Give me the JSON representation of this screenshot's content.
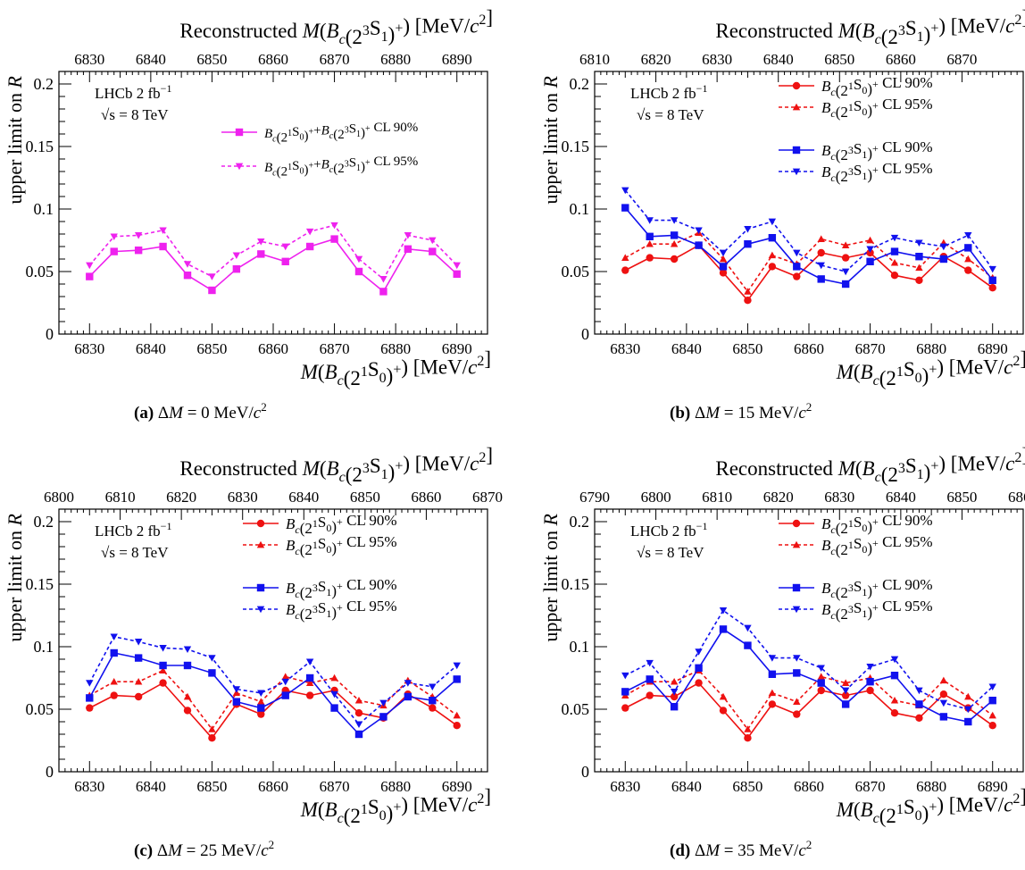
{
  "figure": {
    "top_axis_label": "Reconstructed M(B_c(2^3S_1)^+) [MeV/c^2]",
    "bottom_axis_label": "M(B_c(2^1S_0)^+) [MeV/c^2]",
    "y_axis_label": "upper limit on R",
    "experiment_label": "LHCb  2 fb⁻¹",
    "energy_label": "√s = 8 TeV"
  },
  "chart_data": [
    {
      "panel": "a",
      "caption": "(a)  ΔM = 0 MeV/c²",
      "type": "line",
      "x": [
        6830,
        6834,
        6838,
        6842,
        6846,
        6850,
        6854,
        6858,
        6862,
        6866,
        6870,
        6874,
        6878,
        6882,
        6886,
        6890
      ],
      "xlim": [
        6825,
        6895
      ],
      "ylim": [
        0,
        0.21
      ],
      "yticks": [
        0,
        0.05,
        0.1,
        0.15,
        0.2
      ],
      "xticks": [
        6830,
        6840,
        6850,
        6860,
        6870,
        6880,
        6890
      ],
      "top_xticks": [
        6830,
        6840,
        6850,
        6860,
        6870,
        6880,
        6890
      ],
      "top_offset": 0,
      "series": [
        {
          "name": "B_c(2^1S_0)^+ + B_c(2^3S_1)^+ CL 90%",
          "color": "#ee22ee",
          "dash": false,
          "marker": "square",
          "values": [
            0.046,
            0.066,
            0.067,
            0.07,
            0.047,
            0.035,
            0.052,
            0.064,
            0.058,
            0.07,
            0.076,
            0.05,
            0.034,
            0.068,
            0.066,
            0.048
          ]
        },
        {
          "name": "B_c(2^1S_0)^+ + B_c(2^3S_1)^+ CL 95%",
          "color": "#ee22ee",
          "dash": true,
          "marker": "triangle-down",
          "values": [
            0.055,
            0.078,
            0.079,
            0.083,
            0.056,
            0.046,
            0.063,
            0.074,
            0.07,
            0.082,
            0.087,
            0.06,
            0.044,
            0.079,
            0.075,
            0.055
          ]
        }
      ]
    },
    {
      "panel": "b",
      "caption": "(b)  ΔM = 15 MeV/c²",
      "type": "line",
      "x": [
        6830,
        6834,
        6838,
        6842,
        6846,
        6850,
        6854,
        6858,
        6862,
        6866,
        6870,
        6874,
        6878,
        6882,
        6886,
        6890
      ],
      "xlim": [
        6825,
        6895
      ],
      "ylim": [
        0,
        0.21
      ],
      "yticks": [
        0,
        0.05,
        0.1,
        0.15,
        0.2
      ],
      "xticks": [
        6830,
        6840,
        6850,
        6860,
        6870,
        6880,
        6890
      ],
      "top_xticks": [
        6810,
        6820,
        6830,
        6840,
        6850,
        6860,
        6870
      ],
      "top_offset": -15,
      "series": [
        {
          "name": "B_c(2^1S_0)^+ CL 90%",
          "color": "#ee1111",
          "dash": false,
          "marker": "circle",
          "values": [
            0.051,
            0.061,
            0.06,
            0.071,
            0.049,
            0.027,
            0.054,
            0.046,
            0.065,
            0.061,
            0.065,
            0.047,
            0.043,
            0.062,
            0.051,
            0.037
          ]
        },
        {
          "name": "B_c(2^1S_0)^+ CL 95%",
          "color": "#ee1111",
          "dash": true,
          "marker": "triangle-up",
          "values": [
            0.061,
            0.072,
            0.072,
            0.081,
            0.06,
            0.034,
            0.063,
            0.056,
            0.076,
            0.071,
            0.075,
            0.057,
            0.053,
            0.073,
            0.06,
            0.045
          ]
        },
        {
          "name": "B_c(2^3S_1)^+ CL 90%",
          "color": "#1111ee",
          "dash": false,
          "marker": "square",
          "values": [
            0.101,
            0.078,
            0.079,
            0.071,
            0.054,
            0.072,
            0.077,
            0.054,
            0.044,
            0.04,
            0.058,
            0.066,
            0.062,
            0.06,
            0.069,
            0.043
          ]
        },
        {
          "name": "B_c(2^3S_1)^+ CL 95%",
          "color": "#1111ee",
          "dash": true,
          "marker": "triangle-down",
          "values": [
            0.115,
            0.091,
            0.091,
            0.083,
            0.065,
            0.084,
            0.09,
            0.065,
            0.055,
            0.05,
            0.068,
            0.077,
            0.073,
            0.07,
            0.079,
            0.052
          ]
        }
      ]
    },
    {
      "panel": "c",
      "caption": "(c)  ΔM = 25 MeV/c²",
      "type": "line",
      "x": [
        6830,
        6834,
        6838,
        6842,
        6846,
        6850,
        6854,
        6858,
        6862,
        6866,
        6870,
        6874,
        6878,
        6882,
        6886,
        6890
      ],
      "xlim": [
        6825,
        6895
      ],
      "ylim": [
        0,
        0.21
      ],
      "yticks": [
        0,
        0.05,
        0.1,
        0.15,
        0.2
      ],
      "xticks": [
        6830,
        6840,
        6850,
        6860,
        6870,
        6880,
        6890
      ],
      "top_xticks": [
        6800,
        6810,
        6820,
        6830,
        6840,
        6850,
        6860,
        6870
      ],
      "top_offset": -25,
      "series": [
        {
          "name": "B_c(2^1S_0)^+ CL 90%",
          "color": "#ee1111",
          "dash": false,
          "marker": "circle",
          "values": [
            0.051,
            0.061,
            0.06,
            0.071,
            0.049,
            0.027,
            0.054,
            0.046,
            0.065,
            0.061,
            0.065,
            0.047,
            0.043,
            0.062,
            0.051,
            0.037
          ]
        },
        {
          "name": "B_c(2^1S_0)^+ CL 95%",
          "color": "#ee1111",
          "dash": true,
          "marker": "triangle-up",
          "values": [
            0.061,
            0.072,
            0.072,
            0.081,
            0.06,
            0.034,
            0.063,
            0.056,
            0.076,
            0.071,
            0.075,
            0.057,
            0.053,
            0.073,
            0.06,
            0.045
          ]
        },
        {
          "name": "B_c(2^3S_1)^+ CL 90%",
          "color": "#1111ee",
          "dash": false,
          "marker": "square",
          "values": [
            0.059,
            0.095,
            0.091,
            0.085,
            0.085,
            0.079,
            0.056,
            0.051,
            0.061,
            0.075,
            0.051,
            0.03,
            0.044,
            0.06,
            0.057,
            0.074
          ]
        },
        {
          "name": "B_c(2^3S_1)^+ CL 95%",
          "color": "#1111ee",
          "dash": true,
          "marker": "triangle-down",
          "values": [
            0.071,
            0.108,
            0.104,
            0.099,
            0.098,
            0.091,
            0.066,
            0.063,
            0.072,
            0.088,
            0.062,
            0.038,
            0.055,
            0.071,
            0.068,
            0.085
          ]
        }
      ]
    },
    {
      "panel": "d",
      "caption": "(d)  ΔM = 35 MeV/c²",
      "type": "line",
      "x": [
        6830,
        6834,
        6838,
        6842,
        6846,
        6850,
        6854,
        6858,
        6862,
        6866,
        6870,
        6874,
        6878,
        6882,
        6886,
        6890
      ],
      "xlim": [
        6825,
        6895
      ],
      "ylim": [
        0,
        0.21
      ],
      "yticks": [
        0,
        0.05,
        0.1,
        0.15,
        0.2
      ],
      "xticks": [
        6830,
        6840,
        6850,
        6860,
        6870,
        6880,
        6890
      ],
      "top_xticks": [
        6790,
        6800,
        6810,
        6820,
        6830,
        6840,
        6850,
        6860
      ],
      "top_offset": -35,
      "series": [
        {
          "name": "B_c(2^1S_0)^+ CL 90%",
          "color": "#ee1111",
          "dash": false,
          "marker": "circle",
          "values": [
            0.051,
            0.061,
            0.06,
            0.071,
            0.049,
            0.027,
            0.054,
            0.046,
            0.065,
            0.061,
            0.065,
            0.047,
            0.043,
            0.062,
            0.051,
            0.037
          ]
        },
        {
          "name": "B_c(2^1S_0)^+ CL 95%",
          "color": "#ee1111",
          "dash": true,
          "marker": "triangle-up",
          "values": [
            0.061,
            0.072,
            0.072,
            0.081,
            0.06,
            0.034,
            0.063,
            0.056,
            0.076,
            0.071,
            0.075,
            0.057,
            0.053,
            0.073,
            0.06,
            0.045
          ]
        },
        {
          "name": "B_c(2^3S_1)^+ CL 90%",
          "color": "#1111ee",
          "dash": false,
          "marker": "square",
          "values": [
            0.064,
            0.074,
            0.052,
            0.083,
            0.114,
            0.101,
            0.078,
            0.079,
            0.071,
            0.054,
            0.072,
            0.077,
            0.054,
            0.044,
            0.04,
            0.057
          ]
        },
        {
          "name": "B_c(2^3S_1)^+ CL 95%",
          "color": "#1111ee",
          "dash": true,
          "marker": "triangle-down",
          "values": [
            0.077,
            0.087,
            0.064,
            0.096,
            0.129,
            0.115,
            0.091,
            0.091,
            0.083,
            0.065,
            0.084,
            0.09,
            0.065,
            0.055,
            0.05,
            0.068
          ]
        }
      ]
    }
  ]
}
